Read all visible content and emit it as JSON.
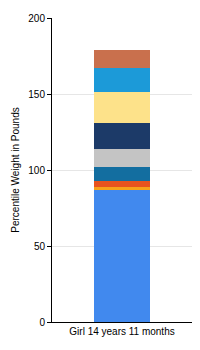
{
  "chart_data": {
    "type": "bar",
    "stacked": true,
    "grid": true,
    "y_label": "Percentile Weight in Pounds",
    "categories": [
      "Girl 14 years 11 months"
    ],
    "series": [
      {
        "color": "#4189ee",
        "values": [
          87
        ]
      },
      {
        "color": "#f7a21b",
        "values": [
          2
        ]
      },
      {
        "color": "#e8531f",
        "values": [
          4
        ]
      },
      {
        "color": "#136ea0",
        "values": [
          9
        ]
      },
      {
        "color": "#c4c4c4",
        "values": [
          12
        ]
      },
      {
        "color": "#1c3a68",
        "values": [
          17
        ]
      },
      {
        "color": "#fde28a",
        "values": [
          20
        ]
      },
      {
        "color": "#1c9ad8",
        "values": [
          16
        ]
      },
      {
        "color": "#c9704d",
        "values": [
          12
        ]
      }
    ],
    "ylim": [
      0,
      200
    ],
    "yticks": [
      0,
      50,
      100,
      150,
      200
    ]
  }
}
